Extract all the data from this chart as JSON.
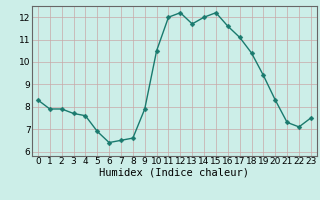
{
  "x": [
    0,
    1,
    2,
    3,
    4,
    5,
    6,
    7,
    8,
    9,
    10,
    11,
    12,
    13,
    14,
    15,
    16,
    17,
    18,
    19,
    20,
    21,
    22,
    23
  ],
  "y": [
    8.3,
    7.9,
    7.9,
    7.7,
    7.6,
    6.9,
    6.4,
    6.5,
    6.6,
    7.9,
    10.5,
    12.0,
    12.2,
    11.7,
    12.0,
    12.2,
    11.6,
    11.1,
    10.4,
    9.4,
    8.3,
    7.3,
    7.1,
    7.5
  ],
  "line_color": "#1a7a6e",
  "marker": "D",
  "marker_size": 2.5,
  "bg_color": "#cceee8",
  "grid_major_color": "#c8a8a8",
  "grid_minor_color": "#c8a8a8",
  "xlabel": "Humidex (Indice chaleur)",
  "xlim": [
    -0.5,
    23.5
  ],
  "ylim": [
    5.8,
    12.5
  ],
  "yticks": [
    6,
    7,
    8,
    9,
    10,
    11,
    12
  ],
  "xticks": [
    0,
    1,
    2,
    3,
    4,
    5,
    6,
    7,
    8,
    9,
    10,
    11,
    12,
    13,
    14,
    15,
    16,
    17,
    18,
    19,
    20,
    21,
    22,
    23
  ],
  "tick_fontsize": 6.5,
  "xlabel_fontsize": 7.5,
  "linewidth": 1.0,
  "spine_color": "#666666"
}
